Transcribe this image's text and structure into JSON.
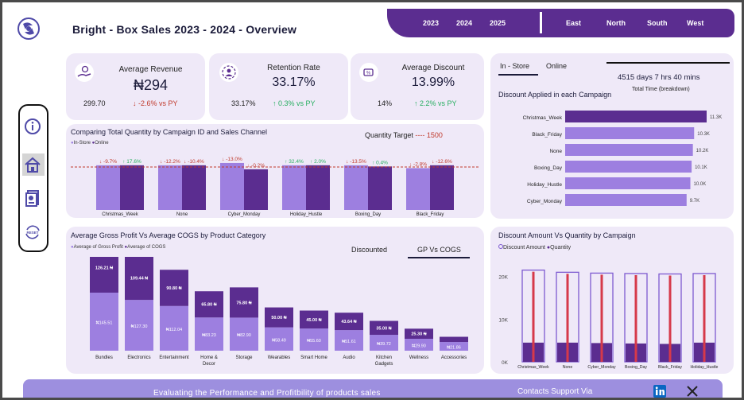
{
  "header": {
    "title": "Bright - Box Sales 2023 - 2024 - Overview",
    "years": [
      "2023",
      "2024",
      "2025"
    ],
    "regions": [
      "East",
      "North",
      "South",
      "West"
    ]
  },
  "colors": {
    "primary": "#5b2d90",
    "light": "#9d7fe0",
    "panel": "#efe9f8",
    "red": "#c0392b",
    "green": "#27ae60"
  },
  "sidebar": {
    "icons": [
      "info-icon",
      "home-icon",
      "report-icon",
      "reset-icon"
    ],
    "reset_label": "RESET"
  },
  "kpis": [
    {
      "title": "Average Revenue",
      "value": "₦294",
      "prev": "299.70",
      "delta": "-2.6% vs PY",
      "arrow": "↓",
      "trend": "down"
    },
    {
      "title": "Retention Rate",
      "value": "33.17%",
      "prev": "33.17%",
      "delta": "0.3% vs PY",
      "arrow": "↑",
      "trend": "up"
    },
    {
      "title": "Average Discount",
      "value": "13.99%",
      "prev": "14%",
      "delta": "2.2% vs PY",
      "arrow": "↑",
      "trend": "up"
    }
  ],
  "channel_tabs": {
    "instore": "In - Store",
    "online": "Online"
  },
  "time_info": {
    "value": "4515 days 7 hrs 40 mins",
    "label": "Total Time (breakdown)"
  },
  "chart_quantity": {
    "title": "Comparing Total Quantity by Campaign ID and Sales Channel",
    "target_label": "Quantity Target",
    "target_dashes": "----",
    "target_value": "1500",
    "legend": [
      "In-Store",
      "Online"
    ]
  },
  "chart_discount": {
    "title": "Discount Applied in each Campaign"
  },
  "chart_gp": {
    "title": "Average Gross Profit Vs Average COGS by Product Category",
    "legend": [
      "Average of Gross Profit",
      "Average of COGS"
    ],
    "tabs": [
      "Discounted",
      "GP Vs COGS"
    ]
  },
  "chart_amount": {
    "title": "Discount Amount Vs Quantity by Campaign",
    "legend": [
      "Discount Amount",
      "Quantity"
    ]
  },
  "footer": {
    "text": "Evaluating the Performance and Profitbility of products sales",
    "contact": "Contacts Support Via"
  },
  "chart_data": [
    {
      "type": "bar",
      "title": "Comparing Total Quantity by Campaign ID and Sales Channel",
      "categories": [
        "Christmas_Week",
        "None",
        "Cyber_Monday",
        "Holiday_Hustle",
        "Boxing_Day",
        "Black_Friday"
      ],
      "series": [
        {
          "name": "In-Store",
          "values": [
            1560,
            1560,
            1640,
            1560,
            1560,
            1460
          ],
          "labels": [
            "↓ -9.7%",
            "↓ -12.2%",
            "↓ -13.0%",
            "↑ 32.4%",
            "↓ -13.5%",
            "↓ -2.8%"
          ],
          "trend": [
            "down",
            "down",
            "down",
            "up",
            "down",
            "down"
          ]
        },
        {
          "name": "Online",
          "values": [
            1560,
            1560,
            1420,
            1560,
            1520,
            1560
          ],
          "labels": [
            "↑ 17.6%",
            "↓ -10.4%",
            "↓ -0.2%",
            "↑ 2.0%",
            "↑ 0.4%",
            "↓ -12.6%"
          ],
          "trend": [
            "up",
            "down",
            "down",
            "up",
            "up",
            "down"
          ]
        }
      ],
      "target": 1500,
      "ylim": [
        0,
        2000
      ]
    },
    {
      "type": "bar",
      "orientation": "horizontal",
      "title": "Discount Applied in each Campaign",
      "categories": [
        "Christmas_Week",
        "Black_Friday",
        "None",
        "Boxing_Day",
        "Holiday_Hustle",
        "Cyber_Monday"
      ],
      "values": [
        11.3,
        10.3,
        10.2,
        10.1,
        10.0,
        9.7
      ],
      "labels": [
        "11.3K",
        "10.3K",
        "10.2K",
        "10.1K",
        "10.0K",
        "9.7K"
      ]
    },
    {
      "type": "bar",
      "stacked": true,
      "title": "Average Gross Profit Vs Average COGS by Product Category",
      "categories": [
        "Bundles",
        "Electronics",
        "Entertainment",
        "Home & Decor",
        "Storage",
        "Wearables",
        "Smart Home",
        "Audio",
        "Kitchen Gadgets",
        "Wellness",
        "Accessories"
      ],
      "series": [
        {
          "name": "Average of Gross Profit",
          "values": [
            145.51,
            127.3,
            112.04,
            83.23,
            82.9,
            58.49,
            55.6,
            51.61,
            39.72,
            29.9,
            21.86
          ],
          "labels": [
            "₦145.51",
            "₦127.30",
            "₦112.04",
            "₦83.23",
            "₦82.90",
            "₦58.49",
            "₦55.60",
            "₦51.61",
            "₦39.72",
            "₦29.90",
            "₦21.86"
          ]
        },
        {
          "name": "Average of COGS",
          "values": [
            126.21,
            109.44,
            90.8,
            65.8,
            75.8,
            50.0,
            45.0,
            43.64,
            35.0,
            25.3,
            13.0
          ],
          "labels": [
            "126.21 ₦",
            "109.44 ₦",
            "90.80 ₦",
            "65.80 ₦",
            "75.80 ₦",
            "50.00 ₦",
            "45.00 ₦",
            "43.64 ₦",
            "35.00 ₦",
            "25.30 ₦",
            ""
          ]
        }
      ]
    },
    {
      "type": "bar",
      "title": "Discount Amount Vs Quantity by Campaign",
      "categories": [
        "Christmas_Week",
        "None",
        "Cyber_Monday",
        "Boxing_Day",
        "Black_Friday",
        "Holiday_Hustle"
      ],
      "series": [
        {
          "name": "Discount Amount",
          "values": [
            21500,
            21000,
            20800,
            20700,
            20600,
            20700
          ]
        },
        {
          "name": "Quantity",
          "values": [
            4500,
            4500,
            4400,
            4300,
            4200,
            4500
          ]
        }
      ],
      "yticks": [
        0,
        10000,
        20000
      ],
      "ytick_labels": [
        "0K",
        "10K",
        "20K"
      ],
      "ylim": [
        0,
        22000
      ]
    }
  ]
}
